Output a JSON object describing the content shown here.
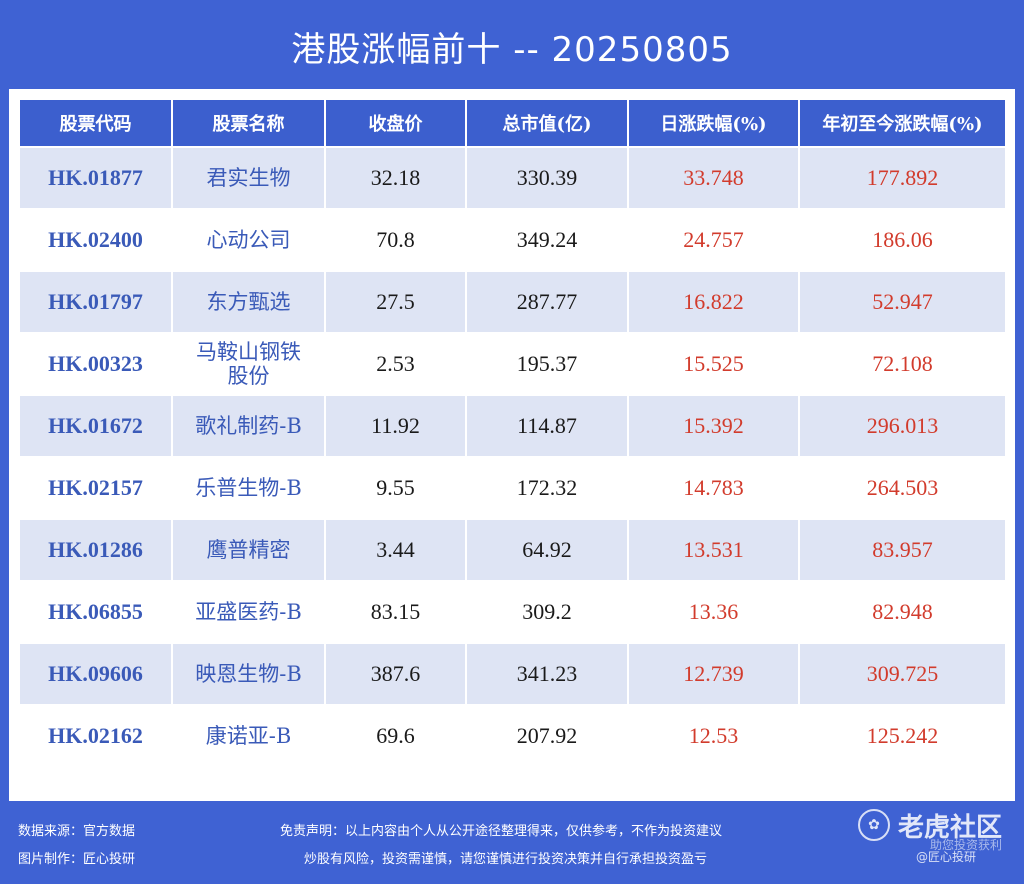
{
  "title": "港股涨幅前十 -- 20250805",
  "table": {
    "headers": [
      "股票代码",
      "股票名称",
      "收盘价",
      "总市值(亿)",
      "日涨跌幅(%)",
      "年初至今涨跌幅(%)"
    ],
    "rows": [
      [
        "HK.01877",
        "君实生物",
        "32.18",
        "330.39",
        "33.748",
        "177.892"
      ],
      [
        "HK.02400",
        "心动公司",
        "70.8",
        "349.24",
        "24.757",
        "186.06"
      ],
      [
        "HK.01797",
        "东方甄选",
        "27.5",
        "287.77",
        "16.822",
        "52.947"
      ],
      [
        "HK.00323",
        "马鞍山钢铁股份",
        "2.53",
        "195.37",
        "15.525",
        "72.108"
      ],
      [
        "HK.01672",
        "歌礼制药-B",
        "11.92",
        "114.87",
        "15.392",
        "296.013"
      ],
      [
        "HK.02157",
        "乐普生物-B",
        "9.55",
        "172.32",
        "14.783",
        "264.503"
      ],
      [
        "HK.01286",
        "鹰普精密",
        "3.44",
        "64.92",
        "13.531",
        "83.957"
      ],
      [
        "HK.06855",
        "亚盛医药-B",
        "83.15",
        "309.2",
        "13.36",
        "82.948"
      ],
      [
        "HK.09606",
        "映恩生物-B",
        "387.6",
        "341.23",
        "12.739",
        "309.725"
      ],
      [
        "HK.02162",
        "康诺亚-B",
        "69.6",
        "207.92",
        "12.53",
        "125.242"
      ]
    ]
  },
  "footer": {
    "source": "数据来源：官方数据",
    "maker": "图片制作：匠心投研",
    "disclaimer1": "免责声明：以上内容由个人从公开途径整理得来，仅供参考，不作为投资建议",
    "disclaimer2": "炒股有风险，投资需谨慎，请您谨慎进行投资决策并自行承担投资盈亏",
    "watermark_brand": "老虎社区",
    "watermark_tag": "助您投资获利",
    "watermark_author": "@匠心投研"
  },
  "colors": {
    "background": "#3f62d3",
    "header": "#3c5fce",
    "stripe": "#dee4f4",
    "code_text": "#3a5ab8",
    "gain_text": "#d23b2c"
  }
}
